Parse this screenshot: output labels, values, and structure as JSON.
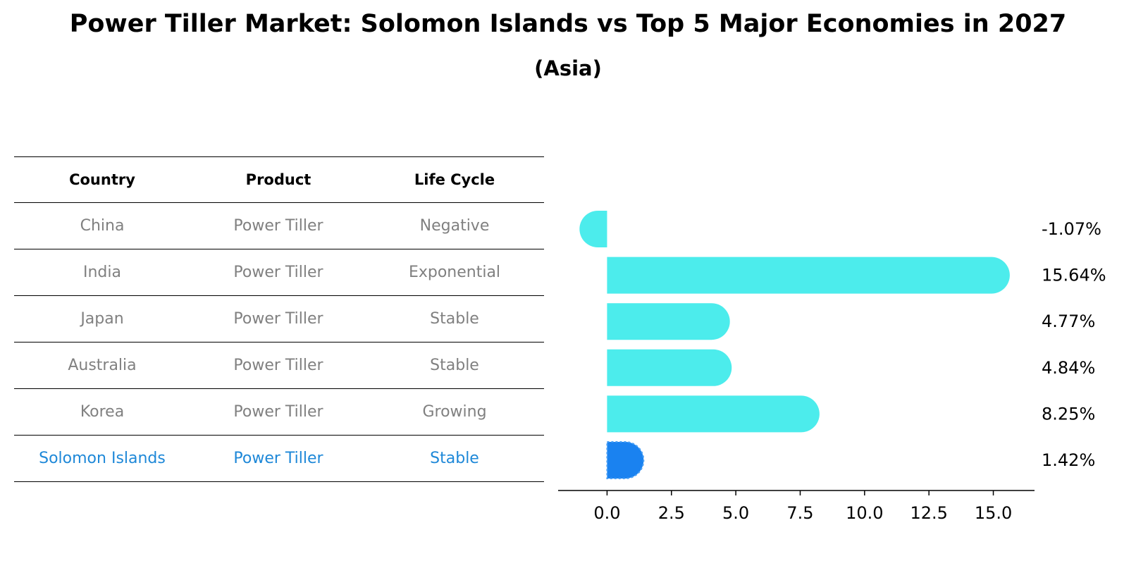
{
  "title": "Power Tiller Market: Solomon Islands vs Top 5 Major Economies in 2027",
  "subtitle": "(Asia)",
  "table": {
    "headers": [
      "Country",
      "Product",
      "Life Cycle"
    ],
    "rows": [
      [
        "China",
        "Power Tiller",
        "Negative"
      ],
      [
        "India",
        "Power Tiller",
        "Exponential"
      ],
      [
        "Japan",
        "Power Tiller",
        "Stable"
      ],
      [
        "Australia",
        "Power Tiller",
        "Stable"
      ],
      [
        "Korea",
        "Power Tiller",
        "Growing"
      ],
      [
        "Solomon Islands",
        "Power Tiller",
        "Stable"
      ]
    ]
  },
  "colors": {
    "bar": "#4cecec",
    "highlight": "#1a82f0",
    "highlight_text": "#1e88d8"
  },
  "chart_data": {
    "type": "bar",
    "orientation": "horizontal",
    "categories": [
      "China",
      "India",
      "Japan",
      "Australia",
      "Korea",
      "Solomon Islands"
    ],
    "values": [
      -1.07,
      15.64,
      4.77,
      4.84,
      8.25,
      1.42
    ],
    "value_labels": [
      "-1.07%",
      "15.64%",
      "4.77%",
      "4.84%",
      "8.25%",
      "1.42%"
    ],
    "highlight": "Solomon Islands",
    "xlim": [
      -1.9,
      16.6
    ],
    "xticks": [
      0.0,
      2.5,
      5.0,
      7.5,
      10.0,
      12.5,
      15.0
    ],
    "xtick_labels": [
      "0.0",
      "2.5",
      "5.0",
      "7.5",
      "10.0",
      "12.5",
      "15.0"
    ]
  }
}
